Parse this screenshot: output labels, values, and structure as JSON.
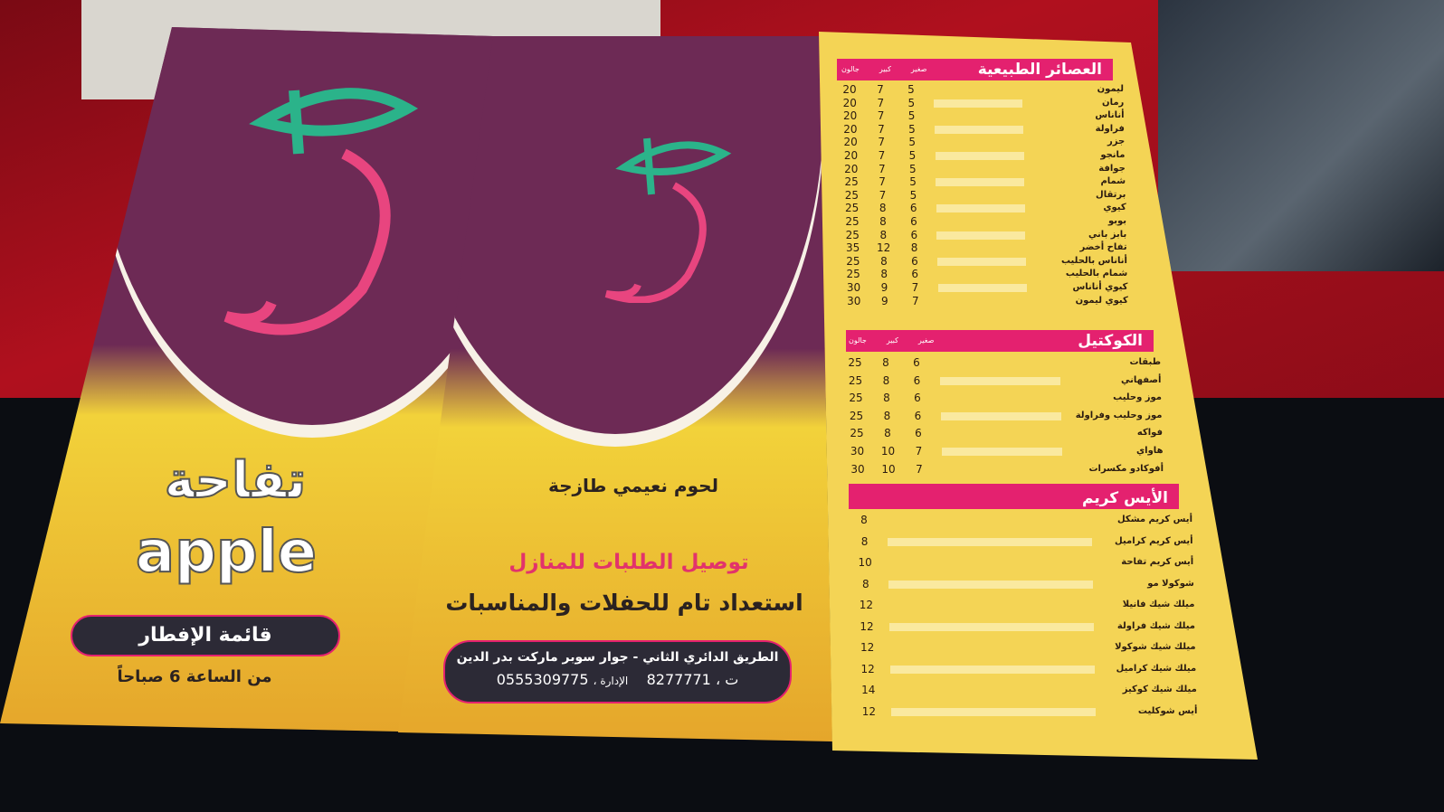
{
  "cover": {
    "brand_arabic": "تفاحة",
    "brand_latin": "apple",
    "menu_label": "قائمة الإفطار",
    "hours": "من الساعة 6 صباحاً"
  },
  "inner": {
    "tagline": "لحوم نعيمي طازجة",
    "delivery": "توصيل الطلبات للمنازل",
    "events": "استعداد تام للحفلات والمناسبات",
    "address": "الطريق الدائري الثاني - جوار سوبر ماركت بدر الدين",
    "phone_label": "ت ،",
    "phone": "8277771",
    "admin_label": "الإدارة ،",
    "admin_phone": "0555309775"
  },
  "colors": {
    "purple": "#6d2a55",
    "yellow": "#f4d455",
    "pink": "#e4216f",
    "green": "#2bb38a"
  },
  "juices": {
    "title": "العصائر الطبيعية",
    "columns": [
      "صغير",
      "كبير",
      "جالون"
    ],
    "items": [
      {
        "name": "ليمون",
        "small": "5",
        "large": "7",
        "gallon": "20"
      },
      {
        "name": "رمان",
        "small": "5",
        "large": "7",
        "gallon": "20"
      },
      {
        "name": "أناناس",
        "small": "5",
        "large": "7",
        "gallon": "20"
      },
      {
        "name": "فراولة",
        "small": "5",
        "large": "7",
        "gallon": "20"
      },
      {
        "name": "جزر",
        "small": "5",
        "large": "7",
        "gallon": "20"
      },
      {
        "name": "مانجو",
        "small": "5",
        "large": "7",
        "gallon": "20"
      },
      {
        "name": "جوافة",
        "small": "5",
        "large": "7",
        "gallon": "20"
      },
      {
        "name": "شمام",
        "small": "5",
        "large": "7",
        "gallon": "25"
      },
      {
        "name": "برتقال",
        "small": "5",
        "large": "7",
        "gallon": "25"
      },
      {
        "name": "كيوي",
        "small": "6",
        "large": "8",
        "gallon": "25"
      },
      {
        "name": "بوبو",
        "small": "6",
        "large": "8",
        "gallon": "25"
      },
      {
        "name": "بابز باني",
        "small": "6",
        "large": "8",
        "gallon": "25"
      },
      {
        "name": "تفاح أخضر",
        "small": "8",
        "large": "12",
        "gallon": "35"
      },
      {
        "name": "أناناس بالحليب",
        "small": "6",
        "large": "8",
        "gallon": "25"
      },
      {
        "name": "شمام بالحليب",
        "small": "6",
        "large": "8",
        "gallon": "25"
      },
      {
        "name": "كيوي أناناس",
        "small": "7",
        "large": "9",
        "gallon": "30"
      },
      {
        "name": "كيوي ليمون",
        "small": "7",
        "large": "9",
        "gallon": "30"
      }
    ]
  },
  "cocktail": {
    "title": "الكوكتيل",
    "columns": [
      "صغير",
      "كبير",
      "جالون"
    ],
    "items": [
      {
        "name": "طبقات",
        "small": "6",
        "large": "8",
        "gallon": "25"
      },
      {
        "name": "أصفهاني",
        "small": "6",
        "large": "8",
        "gallon": "25"
      },
      {
        "name": "موز وحليب",
        "small": "6",
        "large": "8",
        "gallon": "25"
      },
      {
        "name": "موز وحليب وفراولة",
        "small": "6",
        "large": "8",
        "gallon": "25"
      },
      {
        "name": "فواكه",
        "small": "6",
        "large": "8",
        "gallon": "25"
      },
      {
        "name": "هاواي",
        "small": "7",
        "large": "10",
        "gallon": "30"
      },
      {
        "name": "أفوكادو مكسرات",
        "small": "7",
        "large": "10",
        "gallon": "30"
      }
    ]
  },
  "icecream": {
    "title": "الأيس كريم",
    "items": [
      {
        "name": "أيس كريم مشكل",
        "price": "8"
      },
      {
        "name": "أيس كريم كراميل",
        "price": "8"
      },
      {
        "name": "أيس كريم تفاحة",
        "price": "10"
      },
      {
        "name": "شوكولا مو",
        "price": "8"
      },
      {
        "name": "ميلك شيك فانيلا",
        "price": "12"
      },
      {
        "name": "ميلك شيك فراولة",
        "price": "12"
      },
      {
        "name": "ميلك شيك شوكولا",
        "price": "12"
      },
      {
        "name": "ميلك شيك كراميل",
        "price": "12"
      },
      {
        "name": "ميلك شيك كوكيز",
        "price": "14"
      },
      {
        "name": "أيس شوكليت",
        "price": "12"
      }
    ]
  }
}
